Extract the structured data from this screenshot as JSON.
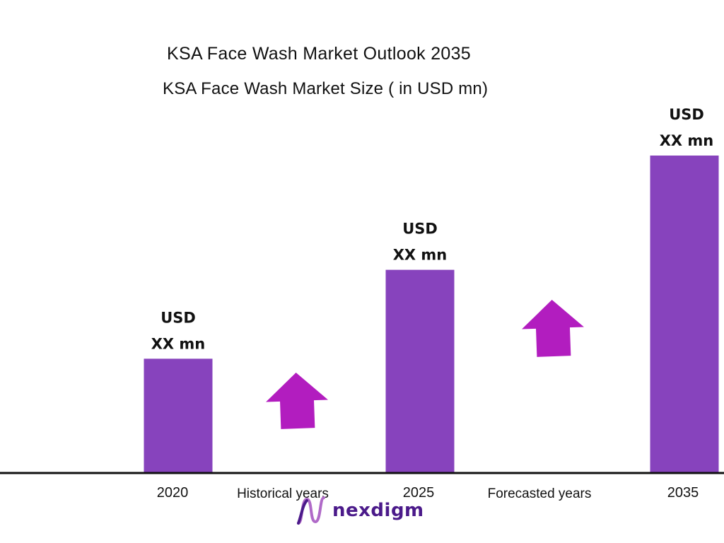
{
  "chart_data": {
    "type": "bar",
    "title": "KSA Face Wash Market Outlook 2035",
    "subtitle": "KSA Face Wash Market Size ( in USD mn)",
    "categories": [
      "2020",
      "2025",
      "2035"
    ],
    "values": [
      36,
      64,
      100
    ],
    "data_labels": [
      [
        "USD",
        "XX mn"
      ],
      [
        "USD",
        "XX mn"
      ],
      [
        "USD",
        "XX mn"
      ]
    ],
    "period_labels": [
      "Historical years",
      "Forecasted years"
    ],
    "ylim": [
      0,
      100
    ],
    "grid": false,
    "legend": "none",
    "colors": {
      "bar": "#8743bd",
      "arrow": "#b21dbf",
      "axis": "#111111"
    }
  },
  "logo": {
    "text": "nexdigm",
    "color_dark": "#4b1a8a",
    "color_light": "#c7398f"
  }
}
